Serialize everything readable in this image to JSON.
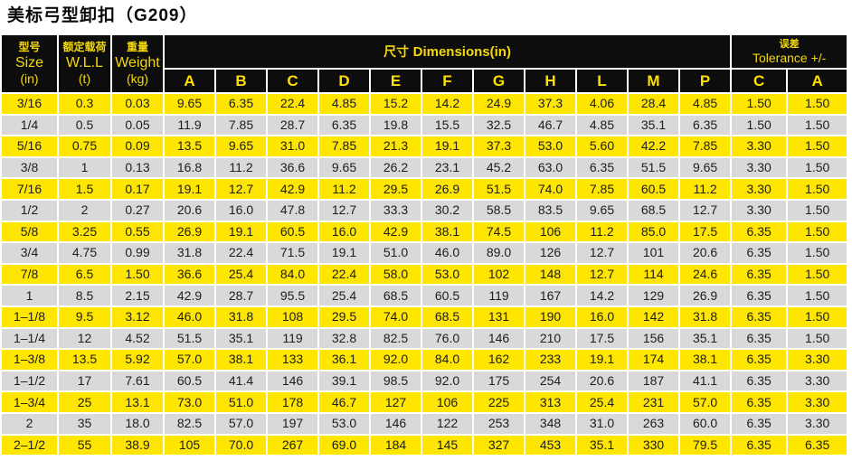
{
  "title": "美标弓型卸扣（G209）",
  "colors": {
    "header_bg": "#0d0d0d",
    "header_text": "#f5d90a",
    "row_yellow": "#ffe600",
    "row_gray": "#d9d9d9",
    "data_text": "#1d1d1d"
  },
  "table": {
    "header": {
      "col_size": {
        "zh": "型号",
        "en": "Size",
        "unit": "(in)"
      },
      "col_wll": {
        "zh": "额定载荷",
        "en": "W.L.L",
        "unit": "(t)"
      },
      "col_weight": {
        "zh": "重量",
        "en": "Weight",
        "unit": "(kg)"
      },
      "dimensions_group": {
        "zh": "尺寸",
        "en": "Dimensions(in)"
      },
      "tolerance_group": {
        "zh": "误差",
        "en": "Tolerance +/-"
      },
      "dimension_cols": [
        "A",
        "B",
        "C",
        "D",
        "E",
        "F",
        "G",
        "H",
        "L",
        "M",
        "P"
      ],
      "tolerance_cols": [
        "C",
        "A"
      ]
    },
    "rows": [
      {
        "size": "3/16",
        "wll": "0.3",
        "weight": "0.03",
        "dims": [
          "9.65",
          "6.35",
          "22.4",
          "4.85",
          "15.2",
          "14.2",
          "24.9",
          "37.3",
          "4.06",
          "28.4",
          "4.85"
        ],
        "tol": [
          "1.50",
          "1.50"
        ]
      },
      {
        "size": "1/4",
        "wll": "0.5",
        "weight": "0.05",
        "dims": [
          "11.9",
          "7.85",
          "28.7",
          "6.35",
          "19.8",
          "15.5",
          "32.5",
          "46.7",
          "4.85",
          "35.1",
          "6.35"
        ],
        "tol": [
          "1.50",
          "1.50"
        ]
      },
      {
        "size": "5/16",
        "wll": "0.75",
        "weight": "0.09",
        "dims": [
          "13.5",
          "9.65",
          "31.0",
          "7.85",
          "21.3",
          "19.1",
          "37.3",
          "53.0",
          "5.60",
          "42.2",
          "7.85"
        ],
        "tol": [
          "3.30",
          "1.50"
        ]
      },
      {
        "size": "3/8",
        "wll": "1",
        "weight": "0.13",
        "dims": [
          "16.8",
          "11.2",
          "36.6",
          "9.65",
          "26.2",
          "23.1",
          "45.2",
          "63.0",
          "6.35",
          "51.5",
          "9.65"
        ],
        "tol": [
          "3.30",
          "1.50"
        ]
      },
      {
        "size": "7/16",
        "wll": "1.5",
        "weight": "0.17",
        "dims": [
          "19.1",
          "12.7",
          "42.9",
          "11.2",
          "29.5",
          "26.9",
          "51.5",
          "74.0",
          "7.85",
          "60.5",
          "11.2"
        ],
        "tol": [
          "3.30",
          "1.50"
        ]
      },
      {
        "size": "1/2",
        "wll": "2",
        "weight": "0.27",
        "dims": [
          "20.6",
          "16.0",
          "47.8",
          "12.7",
          "33.3",
          "30.2",
          "58.5",
          "83.5",
          "9.65",
          "68.5",
          "12.7"
        ],
        "tol": [
          "3.30",
          "1.50"
        ]
      },
      {
        "size": "5/8",
        "wll": "3.25",
        "weight": "0.55",
        "dims": [
          "26.9",
          "19.1",
          "60.5",
          "16.0",
          "42.9",
          "38.1",
          "74.5",
          "106",
          "11.2",
          "85.0",
          "17.5"
        ],
        "tol": [
          "6.35",
          "1.50"
        ]
      },
      {
        "size": "3/4",
        "wll": "4.75",
        "weight": "0.99",
        "dims": [
          "31.8",
          "22.4",
          "71.5",
          "19.1",
          "51.0",
          "46.0",
          "89.0",
          "126",
          "12.7",
          "101",
          "20.6"
        ],
        "tol": [
          "6.35",
          "1.50"
        ]
      },
      {
        "size": "7/8",
        "wll": "6.5",
        "weight": "1.50",
        "dims": [
          "36.6",
          "25.4",
          "84.0",
          "22.4",
          "58.0",
          "53.0",
          "102",
          "148",
          "12.7",
          "114",
          "24.6"
        ],
        "tol": [
          "6.35",
          "1.50"
        ]
      },
      {
        "size": "1",
        "wll": "8.5",
        "weight": "2.15",
        "dims": [
          "42.9",
          "28.7",
          "95.5",
          "25.4",
          "68.5",
          "60.5",
          "119",
          "167",
          "14.2",
          "129",
          "26.9"
        ],
        "tol": [
          "6.35",
          "1.50"
        ]
      },
      {
        "size": "1–1/8",
        "wll": "9.5",
        "weight": "3.12",
        "dims": [
          "46.0",
          "31.8",
          "108",
          "29.5",
          "74.0",
          "68.5",
          "131",
          "190",
          "16.0",
          "142",
          "31.8"
        ],
        "tol": [
          "6.35",
          "1.50"
        ]
      },
      {
        "size": "1–1/4",
        "wll": "12",
        "weight": "4.52",
        "dims": [
          "51.5",
          "35.1",
          "119",
          "32.8",
          "82.5",
          "76.0",
          "146",
          "210",
          "17.5",
          "156",
          "35.1"
        ],
        "tol": [
          "6.35",
          "1.50"
        ]
      },
      {
        "size": "1–3/8",
        "wll": "13.5",
        "weight": "5.92",
        "dims": [
          "57.0",
          "38.1",
          "133",
          "36.1",
          "92.0",
          "84.0",
          "162",
          "233",
          "19.1",
          "174",
          "38.1"
        ],
        "tol": [
          "6.35",
          "3.30"
        ]
      },
      {
        "size": "1–1/2",
        "wll": "17",
        "weight": "7.61",
        "dims": [
          "60.5",
          "41.4",
          "146",
          "39.1",
          "98.5",
          "92.0",
          "175",
          "254",
          "20.6",
          "187",
          "41.1"
        ],
        "tol": [
          "6.35",
          "3.30"
        ]
      },
      {
        "size": "1–3/4",
        "wll": "25",
        "weight": "13.1",
        "dims": [
          "73.0",
          "51.0",
          "178",
          "46.7",
          "127",
          "106",
          "225",
          "313",
          "25.4",
          "231",
          "57.0"
        ],
        "tol": [
          "6.35",
          "3.30"
        ]
      },
      {
        "size": "2",
        "wll": "35",
        "weight": "18.0",
        "dims": [
          "82.5",
          "57.0",
          "197",
          "53.0",
          "146",
          "122",
          "253",
          "348",
          "31.0",
          "263",
          "60.0"
        ],
        "tol": [
          "6.35",
          "3.30"
        ]
      },
      {
        "size": "2–1/2",
        "wll": "55",
        "weight": "38.9",
        "dims": [
          "105",
          "70.0",
          "267",
          "69.0",
          "184",
          "145",
          "327",
          "453",
          "35.1",
          "330",
          "79.5"
        ],
        "tol": [
          "6.35",
          "6.35"
        ]
      }
    ]
  }
}
